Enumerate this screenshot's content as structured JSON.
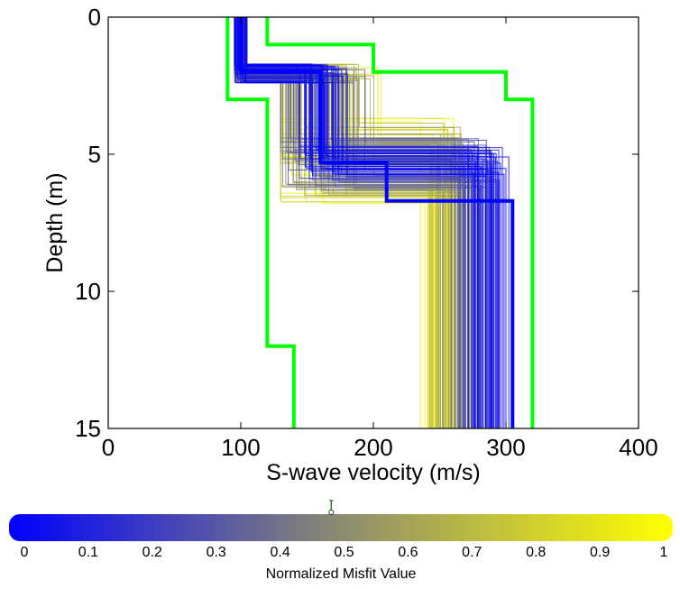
{
  "chart_data": {
    "type": "line",
    "xlabel": "S-wave velocity (m/s)",
    "ylabel": "Depth (m)",
    "xlim": [
      0,
      400
    ],
    "ylim": [
      0,
      15
    ],
    "y_reversed": true,
    "grid": false,
    "x_ticks": [
      "0",
      "100",
      "200",
      "300",
      "400"
    ],
    "y_ticks": [
      "0",
      "5",
      "10",
      "15"
    ],
    "ensemble": {
      "count": 180,
      "color_low": "#0000ff",
      "color_high": "#ffff00",
      "v1_range": [
        95,
        105
      ],
      "h1_range": [
        1.7,
        2.4
      ],
      "v2_range": [
        130,
        270
      ],
      "h2_range": [
        3.5,
        7.5
      ],
      "v3_range": [
        220,
        315
      ]
    },
    "series": [
      {
        "color": "#00ff00",
        "velocity": [
          120,
          120,
          200,
          200,
          300,
          300,
          320,
          320
        ],
        "depth": [
          0,
          1,
          1,
          2,
          2,
          3,
          3,
          15
        ]
      },
      {
        "color": "#00ff00",
        "velocity": [
          90,
          90,
          120,
          120,
          140,
          140
        ],
        "depth": [
          0,
          3,
          3,
          12,
          12,
          15
        ]
      },
      {
        "color": "#0000ff",
        "velocity": [
          100,
          100,
          160,
          160,
          210,
          210,
          305,
          305
        ],
        "depth": [
          0,
          2,
          2,
          5.3,
          5.3,
          6.7,
          6.7,
          15
        ]
      }
    ],
    "colorbar": {
      "label": "Normalized Misfit Value",
      "range": [
        0,
        1
      ],
      "ticks": [
        "0",
        "0.1",
        "0.2",
        "0.3",
        "0.4",
        "0.5",
        "0.6",
        "0.7",
        "0.8",
        "0.9",
        "1"
      ],
      "marker_value": 0.48,
      "color_low": "#0000ff",
      "color_high": "#ffff00"
    }
  }
}
